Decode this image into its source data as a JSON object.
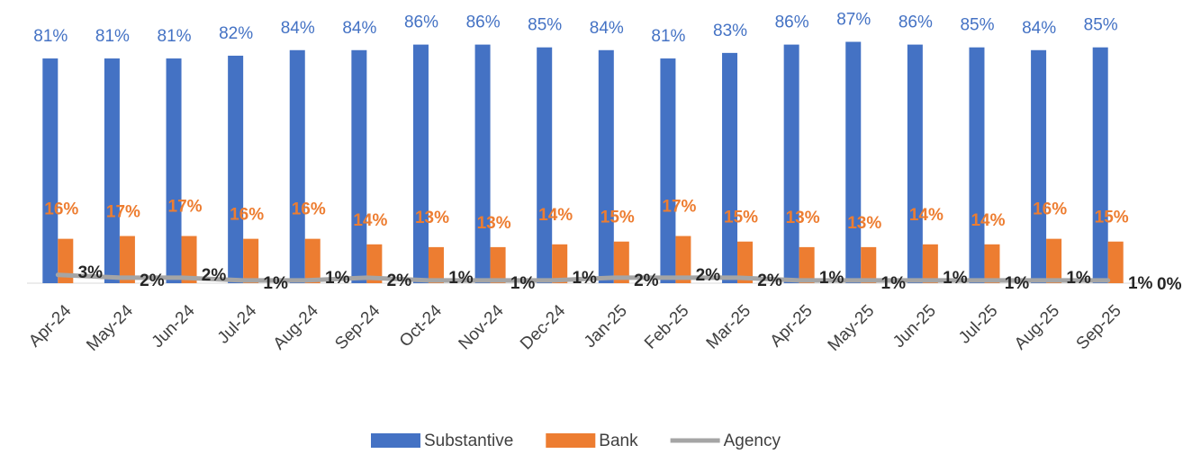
{
  "chart_data": {
    "type": "bar",
    "categories": [
      "Apr-24",
      "May-24",
      "Jun-24",
      "Jul-24",
      "Aug-24",
      "Sep-24",
      "Oct-24",
      "Nov-24",
      "Dec-24",
      "Jan-25",
      "Feb-25",
      "Mar-25",
      "Apr-25",
      "May-25",
      "Jun-25",
      "Jul-25",
      "Aug-25",
      "Sep-25"
    ],
    "series": [
      {
        "name": "Substantive",
        "type": "bar",
        "color": "#4472c4",
        "values": [
          81,
          81,
          81,
          82,
          84,
          84,
          86,
          86,
          85,
          84,
          81,
          83,
          86,
          87,
          86,
          85,
          84,
          85
        ],
        "value_labels": [
          "81%",
          "81%",
          "81%",
          "82%",
          "84%",
          "84%",
          "86%",
          "86%",
          "85%",
          "84%",
          "81%",
          "83%",
          "86%",
          "87%",
          "86%",
          "85%",
          "84%",
          "85%"
        ]
      },
      {
        "name": "Bank",
        "type": "bar",
        "color": "#ed7d31",
        "values": [
          16,
          17,
          17,
          16,
          16,
          14,
          13,
          13,
          14,
          15,
          17,
          15,
          13,
          13,
          14,
          14,
          16,
          15
        ],
        "value_labels": [
          "16%",
          "17%",
          "17%",
          "16%",
          "16%",
          "14%",
          "13%",
          "13%",
          "14%",
          "15%",
          "17%",
          "15%",
          "13%",
          "13%",
          "14%",
          "14%",
          "16%",
          "15%"
        ]
      },
      {
        "name": "Agency",
        "type": "line",
        "color": "#a5a5a5",
        "values": [
          3,
          2,
          2,
          1,
          1,
          2,
          1,
          1,
          1,
          2,
          2,
          2,
          1,
          1,
          1,
          1,
          1,
          1
        ],
        "value_labels": [
          "3%",
          "2%",
          "2%",
          "1%",
          "1%",
          "2%",
          "1%",
          "1%",
          "1%",
          "2%",
          "2%",
          "2%",
          "1%",
          "1%",
          "1%",
          "1%",
          "1%",
          "1%"
        ]
      }
    ],
    "ylim": [
      0,
      100
    ],
    "y2lim": [
      0,
      100
    ],
    "y2ticks": [
      {
        "value": 0,
        "label": "0%"
      }
    ],
    "legend": "bottom"
  }
}
